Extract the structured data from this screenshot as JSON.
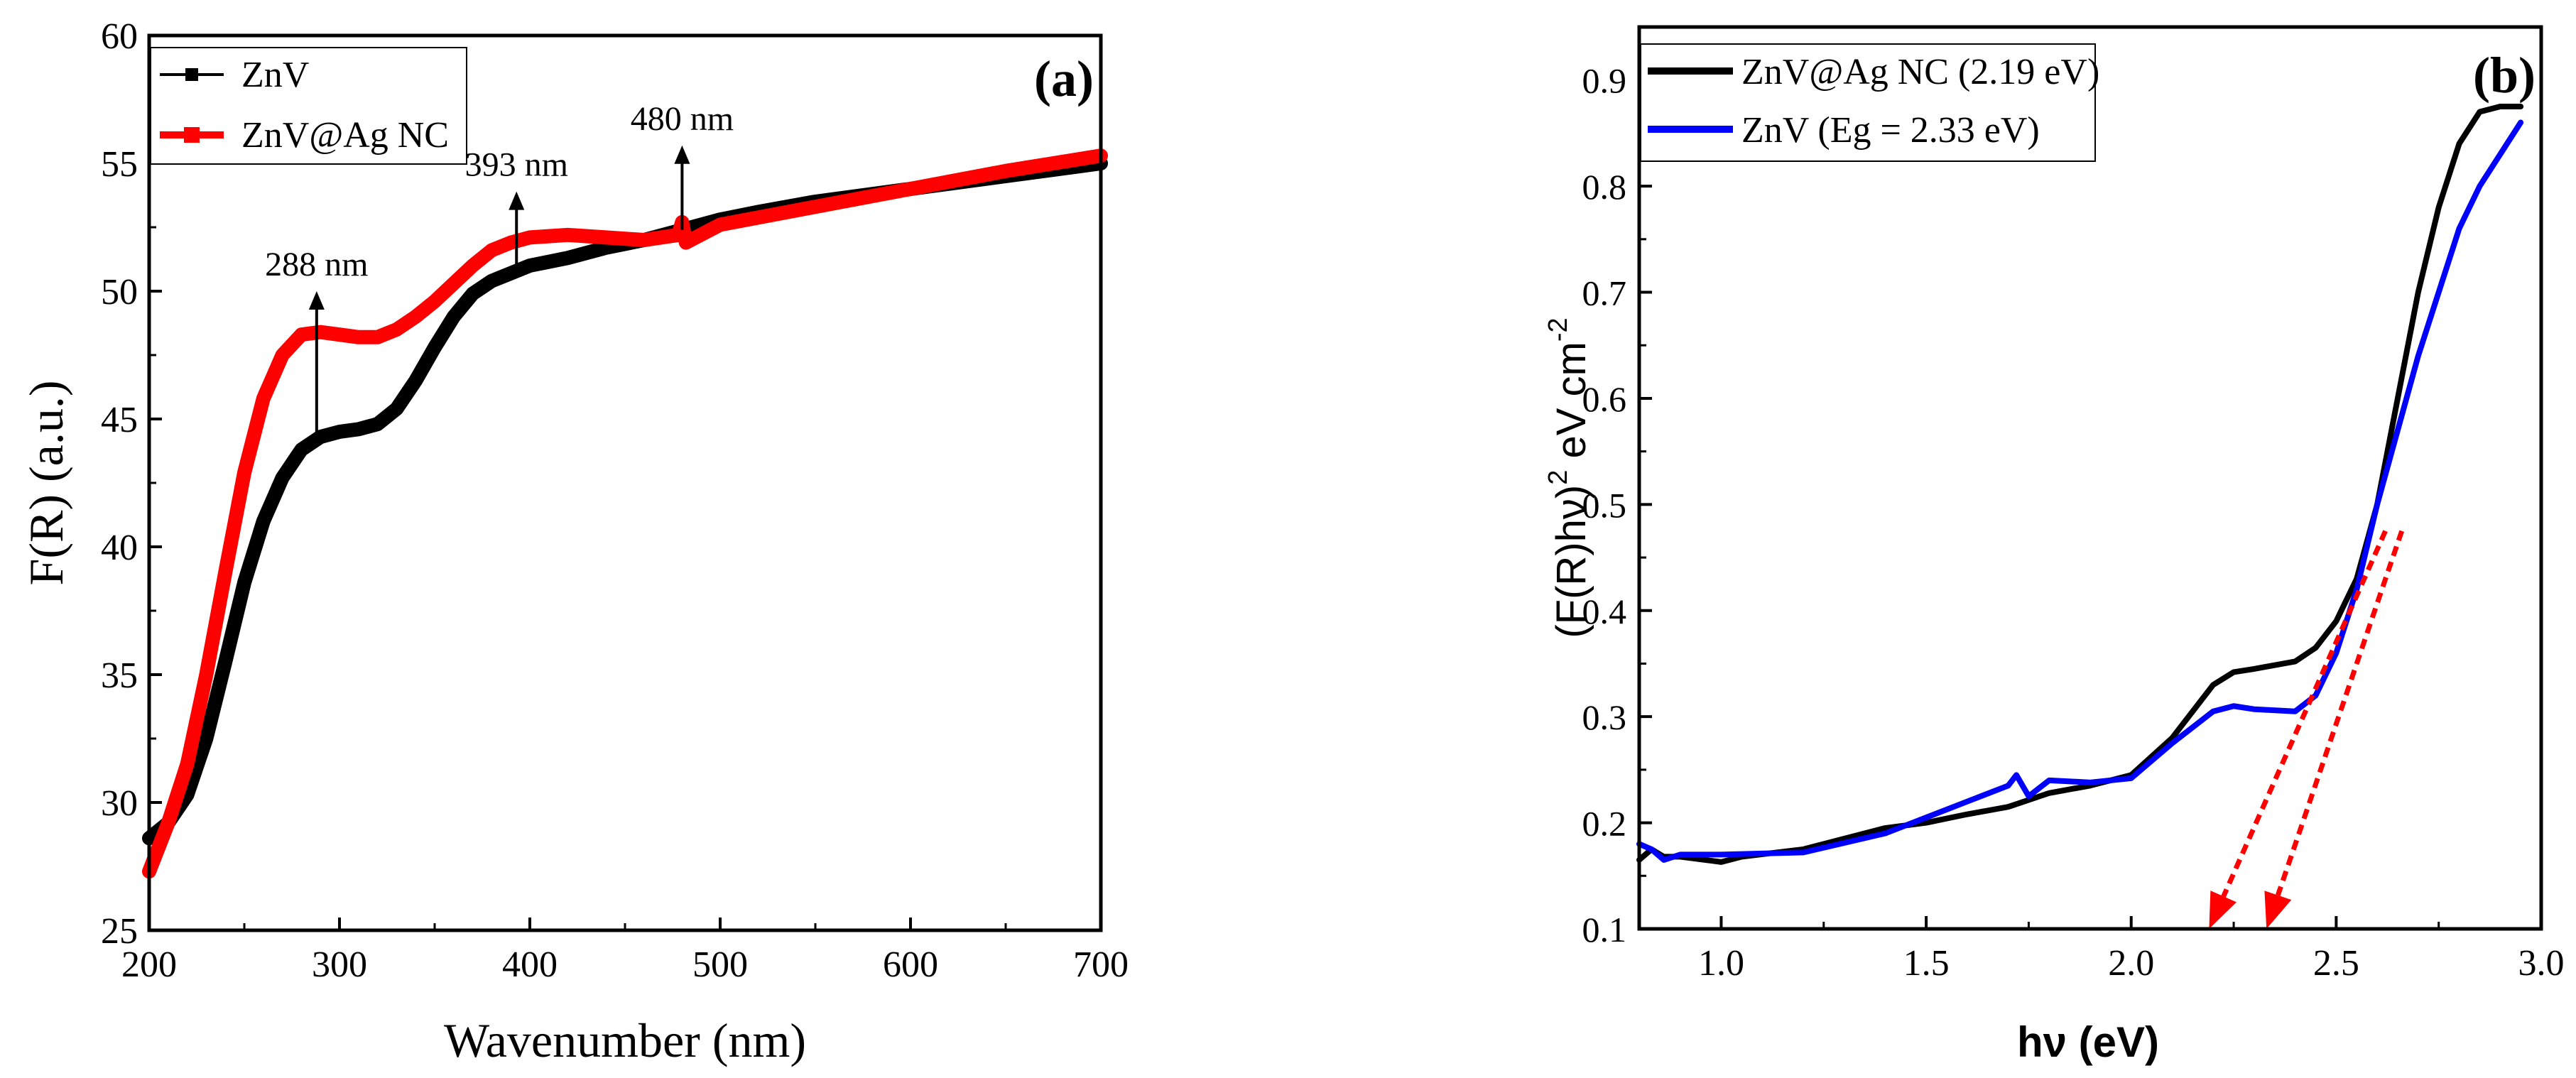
{
  "chart_data": [
    {
      "type": "line",
      "panel_label": "(a)",
      "xlabel": "Wavenumber (nm)",
      "ylabel": "F(R) (a.u.)",
      "xlim": [
        200,
        700
      ],
      "ylim": [
        25,
        60
      ],
      "xticks": [
        200,
        300,
        400,
        500,
        600,
        700
      ],
      "yticks": [
        25,
        30,
        35,
        40,
        45,
        50,
        55,
        60
      ],
      "colors": {
        "ZnV": "#000000",
        "ZnV@Ag NC": "#ff0000",
        "arrow": "#000000"
      },
      "legend": {
        "position": "top-left",
        "entries": [
          "ZnV",
          "ZnV@Ag NC"
        ]
      },
      "series": [
        {
          "name": "ZnV",
          "x": [
            200,
            210,
            220,
            230,
            240,
            250,
            260,
            270,
            280,
            290,
            300,
            310,
            320,
            330,
            340,
            350,
            360,
            370,
            380,
            390,
            400,
            420,
            440,
            460,
            480,
            500,
            520,
            550,
            600,
            650,
            700
          ],
          "y": [
            28.6,
            29.2,
            30.3,
            32.5,
            35.5,
            38.6,
            41.0,
            42.7,
            43.8,
            44.3,
            44.5,
            44.6,
            44.8,
            45.4,
            46.5,
            47.8,
            49.0,
            49.9,
            50.4,
            50.7,
            51.0,
            51.3,
            51.7,
            52.0,
            52.4,
            52.8,
            53.1,
            53.5,
            54.0,
            54.5,
            55.0
          ]
        },
        {
          "name": "ZnV@Ag NC",
          "x": [
            200,
            210,
            220,
            230,
            240,
            250,
            260,
            270,
            280,
            290,
            300,
            310,
            320,
            330,
            340,
            350,
            360,
            370,
            380,
            390,
            400,
            420,
            440,
            460,
            478,
            480,
            482,
            500,
            550,
            600,
            650,
            700
          ],
          "y": [
            27.3,
            29.2,
            31.5,
            35.0,
            39.0,
            42.9,
            45.8,
            47.5,
            48.3,
            48.4,
            48.3,
            48.2,
            48.2,
            48.5,
            49.0,
            49.6,
            50.3,
            51.0,
            51.6,
            51.9,
            52.1,
            52.2,
            52.1,
            52.0,
            52.2,
            52.7,
            51.9,
            52.6,
            53.3,
            54.0,
            54.7,
            55.3
          ]
        }
      ],
      "annotations": [
        {
          "text": "288 nm",
          "x": 288,
          "y_from": 44.3,
          "y_to": 50.0
        },
        {
          "text": "393 nm",
          "x": 393,
          "y_from": 50.7,
          "y_to": 53.9
        },
        {
          "text": "480 nm",
          "x": 480,
          "y_from": 52.4,
          "y_to": 55.7
        }
      ]
    },
    {
      "type": "line",
      "panel_label": "(b)",
      "xlabel": "hν (eV)",
      "ylabel_main": "(F(R)hν)",
      "ylabel_sup": "2",
      "ylabel_unit": " eV cm",
      "ylabel_unit_sup": "-2",
      "xlim": [
        0.8,
        3.0
      ],
      "ylim": [
        0.1,
        0.95
      ],
      "xticks": [
        1.0,
        1.5,
        2.0,
        2.5,
        3.0
      ],
      "xtick_labels": [
        "1.0",
        "1.5",
        "2.0",
        "2.5",
        "3.0"
      ],
      "yticks": [
        0.1,
        0.2,
        0.3,
        0.4,
        0.5,
        0.6,
        0.7,
        0.8,
        0.9
      ],
      "ytick_labels": [
        "0.1",
        "0.2",
        "0.3",
        "0.4",
        "0.5",
        "0.6",
        "0.7",
        "0.8",
        "0.9"
      ],
      "colors": {
        "ZnV@Ag NC (2.19 eV)": "#000000",
        "ZnV (Eg = 2.33 eV)": "#0000ff",
        "tangent": "#ff0000"
      },
      "legend": {
        "position": "top-left",
        "entries": [
          "ZnV@Ag NC (2.19 eV)",
          "ZnV (Eg = 2.33 eV)"
        ]
      },
      "series": [
        {
          "name": "ZnV@Ag NC (2.19 eV)",
          "x": [
            0.8,
            0.83,
            0.86,
            0.9,
            1.0,
            1.05,
            1.2,
            1.4,
            1.5,
            1.6,
            1.7,
            1.8,
            1.9,
            2.0,
            2.1,
            2.2,
            2.25,
            2.3,
            2.4,
            2.45,
            2.5,
            2.55,
            2.6,
            2.65,
            2.7,
            2.75,
            2.8,
            2.85,
            2.9,
            2.95
          ],
          "y": [
            0.165,
            0.175,
            0.168,
            0.168,
            0.163,
            0.168,
            0.175,
            0.195,
            0.2,
            0.208,
            0.215,
            0.228,
            0.235,
            0.245,
            0.28,
            0.33,
            0.342,
            0.345,
            0.352,
            0.365,
            0.39,
            0.43,
            0.5,
            0.6,
            0.7,
            0.78,
            0.84,
            0.87,
            0.875,
            0.875
          ]
        },
        {
          "name": "ZnV (Eg = 2.33 eV)",
          "x": [
            0.8,
            0.83,
            0.86,
            0.9,
            1.0,
            1.2,
            1.4,
            1.5,
            1.6,
            1.7,
            1.72,
            1.75,
            1.8,
            1.9,
            2.0,
            2.1,
            2.2,
            2.25,
            2.3,
            2.4,
            2.45,
            2.5,
            2.55,
            2.6,
            2.65,
            2.7,
            2.75,
            2.8,
            2.85,
            2.9,
            2.95
          ],
          "y": [
            0.18,
            0.175,
            0.165,
            0.17,
            0.17,
            0.172,
            0.19,
            0.205,
            0.22,
            0.235,
            0.245,
            0.225,
            0.24,
            0.238,
            0.242,
            0.275,
            0.305,
            0.31,
            0.307,
            0.305,
            0.32,
            0.36,
            0.42,
            0.5,
            0.57,
            0.64,
            0.7,
            0.76,
            0.8,
            0.83,
            0.86
          ]
        }
      ],
      "tangents": [
        {
          "name": "ZnV@Ag NC",
          "x_top": 2.62,
          "y_top": 0.475,
          "x_intercept": 2.19
        },
        {
          "name": "ZnV",
          "x_top": 2.66,
          "y_top": 0.475,
          "x_intercept": 2.33
        }
      ]
    }
  ]
}
